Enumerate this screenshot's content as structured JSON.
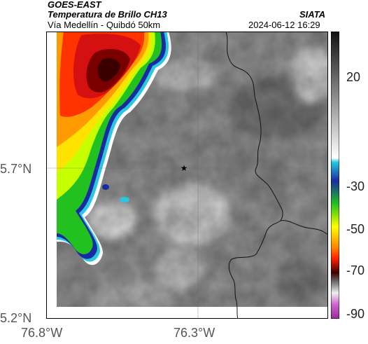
{
  "header": {
    "satellite": "GOES-EAST",
    "product": "Temperatura de Brillo CH13",
    "region": "Vía Medellín - Quibdó 50km",
    "agency": "SIATA",
    "timestamp": "2024-06-12 16:29"
  },
  "map": {
    "lat_labels": [
      "5.7°N",
      "5.2°N"
    ],
    "lon_labels": [
      "76.8°W",
      "76.3°W"
    ],
    "marker_icon": "star-icon"
  },
  "colorbar": {
    "tick_labels": [
      "20",
      "-30",
      "-50",
      "-70",
      "-90"
    ],
    "colors": [
      "#111111",
      "#ffffff",
      "#27c8e0",
      "#1a2aa0",
      "#22c11f",
      "#ffff00",
      "#ff2200",
      "#3a0000",
      "#cc66cc"
    ]
  }
}
